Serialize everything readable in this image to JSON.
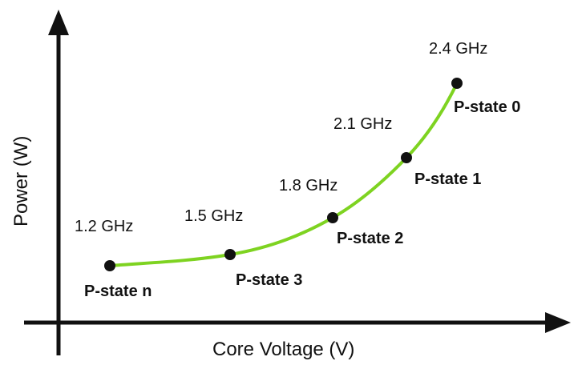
{
  "x_axis_label": "Core Voltage (V)",
  "y_axis_label": "Power (W)",
  "curve_color": "#7ed321",
  "axis_color": "#111111",
  "points": [
    {
      "state": "P-state n",
      "freq": "1.2 GHz"
    },
    {
      "state": "P-state 3",
      "freq": "1.5 GHz"
    },
    {
      "state": "P-state 2",
      "freq": "1.8 GHz"
    },
    {
      "state": "P-state 1",
      "freq": "2.1 GHz"
    },
    {
      "state": "P-state 0",
      "freq": "2.4 GHz"
    }
  ]
}
